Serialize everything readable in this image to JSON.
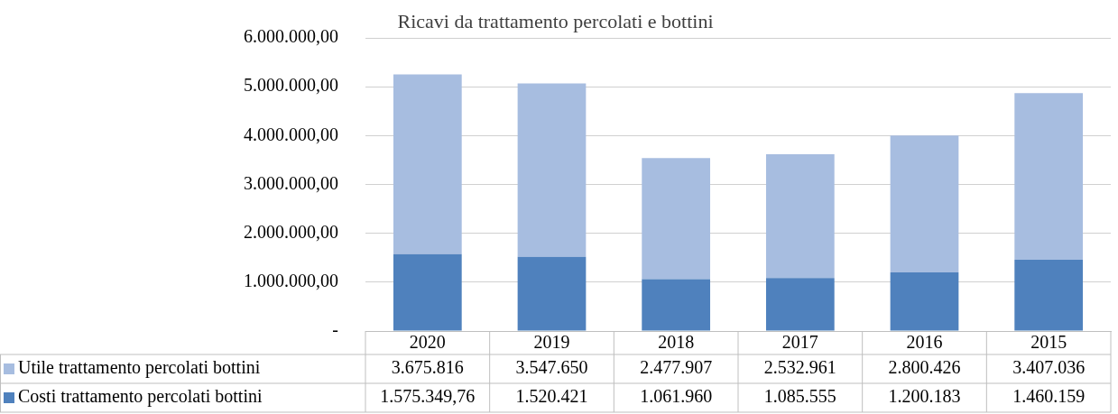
{
  "chart_data": {
    "type": "bar",
    "title": "Ricavi da trattamento percolati e bottini",
    "stacked": true,
    "categories": [
      "2020",
      "2019",
      "2018",
      "2017",
      "2016",
      "2015"
    ],
    "series": [
      {
        "name": "Costi trattamento percolati bottini",
        "color": "#4f81bd",
        "values": [
          1575349.76,
          1520421,
          1061960,
          1085555,
          1200183,
          1460159
        ],
        "value_labels": [
          "1.575.349,76",
          "1.520.421",
          "1.061.960",
          "1.085.555",
          "1.200.183",
          "1.460.159"
        ]
      },
      {
        "name": "Utile trattamento percolati bottini",
        "color": "#a7bde0",
        "values": [
          3675816,
          3547650,
          2477907,
          2532961,
          2800426,
          3407036
        ],
        "value_labels": [
          "3.675.816",
          "3.547.650",
          "2.477.907",
          "2.532.961",
          "2.800.426",
          "3.407.036"
        ]
      }
    ],
    "ylim": [
      0,
      6000000
    ],
    "yticks": [
      {
        "value": 0,
        "label": "-"
      },
      {
        "value": 1000000,
        "label": "1.000.000,00"
      },
      {
        "value": 2000000,
        "label": "2.000.000,00"
      },
      {
        "value": 3000000,
        "label": "3.000.000,00"
      },
      {
        "value": 4000000,
        "label": "4.000.000,00"
      },
      {
        "value": 5000000,
        "label": "5.000.000,00"
      },
      {
        "value": 6000000,
        "label": "6.000.000,00"
      }
    ],
    "grid": "y",
    "legend": "bottom"
  }
}
